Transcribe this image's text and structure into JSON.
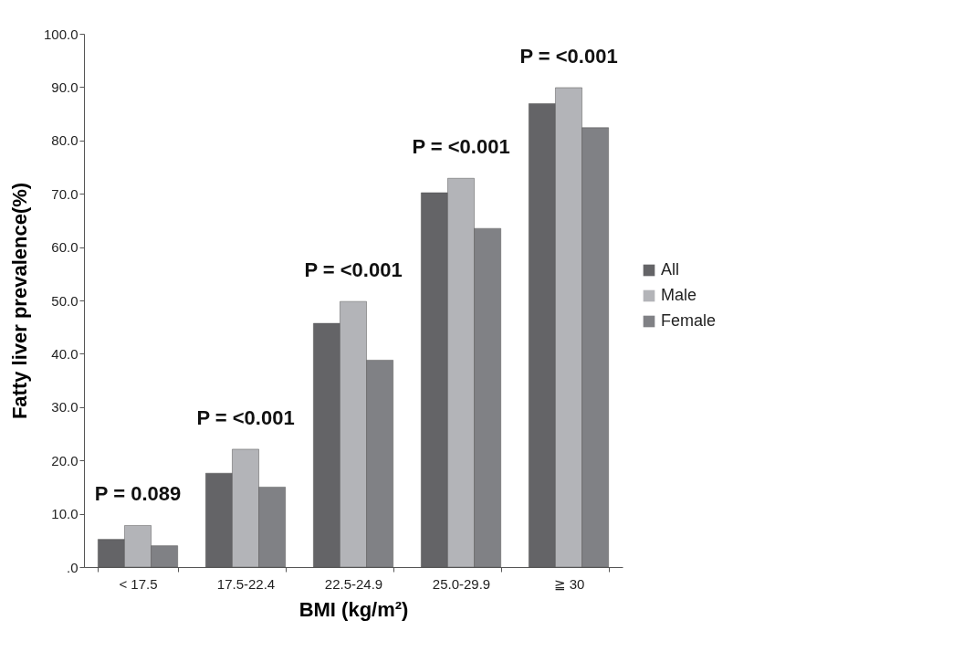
{
  "chart_data": {
    "type": "bar",
    "xlabel": "BMI (kg/m²)",
    "ylabel": "Fatty liver prevalence(%)",
    "categories": [
      "< 17.5",
      "17.5-22.4",
      "22.5-24.9",
      "25.0-29.9",
      "≧ 30"
    ],
    "series": [
      {
        "name": "All",
        "color": "#646467",
        "values": [
          5.2,
          17.6,
          45.7,
          70.2,
          86.9
        ]
      },
      {
        "name": "Male",
        "color": "#b3b4b8",
        "values": [
          7.8,
          22.1,
          49.8,
          72.9,
          89.9
        ]
      },
      {
        "name": "Female",
        "color": "#808185",
        "values": [
          4.0,
          15.0,
          38.8,
          63.5,
          82.4
        ]
      }
    ],
    "ylim": [
      0,
      100
    ],
    "yticks": [
      {
        "value": 0,
        "label": ".0"
      },
      {
        "value": 10,
        "label": "10.0"
      },
      {
        "value": 20,
        "label": "20.0"
      },
      {
        "value": 30,
        "label": "30.0"
      },
      {
        "value": 40,
        "label": "40.0"
      },
      {
        "value": 50,
        "label": "50.0"
      },
      {
        "value": 60,
        "label": "60.0"
      },
      {
        "value": 70,
        "label": "70.0"
      },
      {
        "value": 80,
        "label": "80.0"
      },
      {
        "value": 90,
        "label": "90.0"
      },
      {
        "value": 100,
        "label": "100.0"
      }
    ],
    "annotations": [
      "P = 0.089",
      "P = <0.001",
      "P = <0.001",
      "P = <0.001",
      "P = <0.001"
    ],
    "grid": false,
    "legend": "right"
  }
}
